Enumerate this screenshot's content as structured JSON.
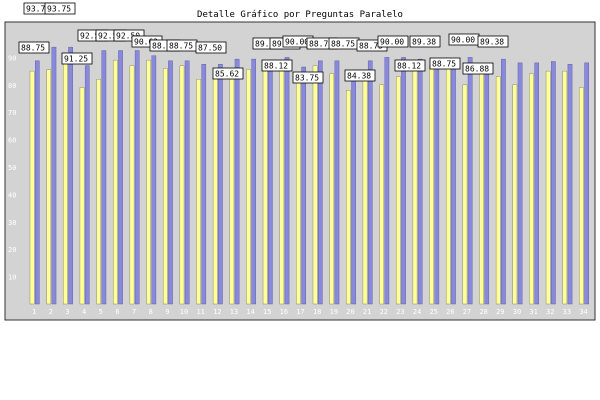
{
  "chart_data": {
    "type": "bar",
    "title": "Detalle Gráfico por Preguntas Paralelo",
    "xlabel": "",
    "ylabel": "",
    "ylim": [
      0,
      100
    ],
    "yticks": [
      0,
      10,
      20,
      30,
      40,
      50,
      60,
      70,
      80,
      90
    ],
    "grid": false,
    "legend": "none",
    "categories": [
      "1",
      "2",
      "3",
      "4",
      "5",
      "6",
      "7",
      "8",
      "9",
      "10",
      "11",
      "12",
      "13",
      "14",
      "15",
      "16",
      "17",
      "18",
      "19",
      "20",
      "21",
      "22",
      "23",
      "24",
      "25",
      "26",
      "27",
      "28",
      "29",
      "30",
      "31",
      "32",
      "33",
      "34"
    ],
    "series": [
      {
        "color": "#ffff99",
        "values": [
          85.0,
          85.5,
          91.25,
          79.0,
          82.0,
          89.0,
          87.0,
          89.0,
          86.0,
          87.0,
          82.0,
          83.0,
          82.0,
          85.62,
          88.12,
          86.0,
          83.75,
          87.0,
          84.0,
          78.0,
          82.0,
          80.0,
          83.0,
          88.12,
          87.0,
          88.75,
          80.0,
          86.88,
          83.0,
          80.0,
          84.0,
          85.0,
          85.0,
          79.0
        ]
      },
      {
        "color": "#8888dd",
        "values": [
          88.75,
          93.75,
          93.75,
          87.0,
          92.5,
          92.5,
          92.5,
          90.62,
          88.75,
          88.75,
          87.5,
          87.5,
          89.38,
          89.38,
          86.0,
          90.0,
          86.5,
          88.75,
          88.75,
          84.38,
          88.75,
          90.0,
          90.0,
          89.38,
          89.38,
          88.0,
          90.0,
          86.0,
          89.38,
          88.0,
          88.0,
          88.5,
          87.5,
          88.0
        ]
      }
    ],
    "data_labels": [
      "88.75",
      "93.75",
      "93.75",
      "91.25",
      "92.50",
      "92.50",
      "92.50",
      "90.62",
      "88.75",
      "88.75",
      "87.50",
      "85.62",
      "89.38",
      "89.38",
      "88.12",
      "90.00",
      "83.75",
      "88.75",
      "88.75",
      "84.38",
      "88.75",
      "90.00",
      "88.12",
      "89.38",
      "88.75",
      "90.00",
      "86.88",
      "89.38"
    ]
  }
}
